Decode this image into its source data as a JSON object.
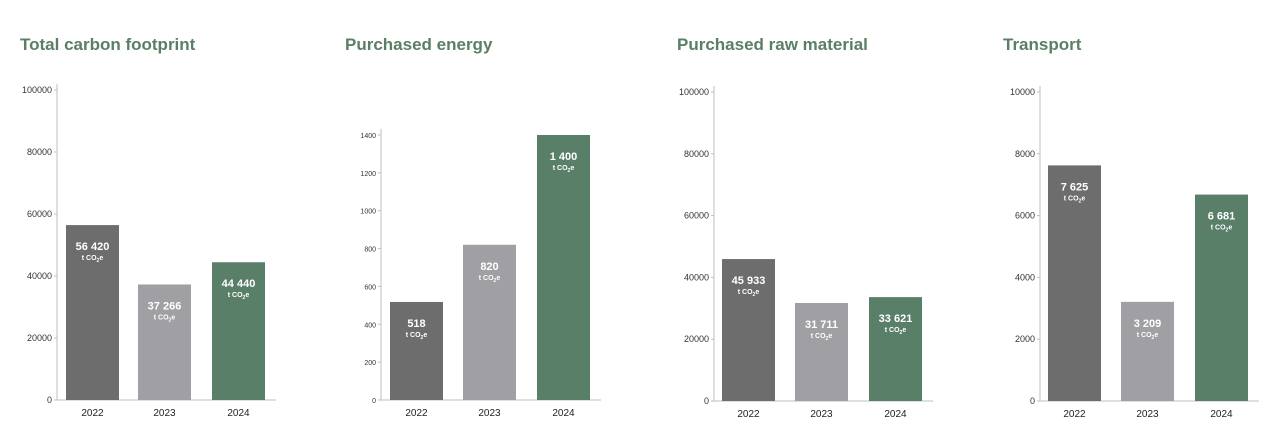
{
  "colors": {
    "year_2022": "#6d6d6d",
    "year_2023": "#a0a0a4",
    "year_2024": "#5a7f69",
    "title": "#5a7f64",
    "axis": "#bfbfbf"
  },
  "chart_data": [
    {
      "type": "bar",
      "title": "Total carbon footprint",
      "categories": [
        "2022",
        "2023",
        "2024"
      ],
      "values": [
        56420,
        37266,
        44440
      ],
      "value_labels": [
        "56 420",
        "37 266",
        "44 440"
      ],
      "unit": "t CO2e",
      "ylim": [
        0,
        100000
      ],
      "yticks": [
        0,
        20000,
        40000,
        60000,
        80000,
        100000
      ],
      "ytick_labels": [
        "0",
        "20000",
        "40000",
        "60000",
        "80000",
        "100000"
      ],
      "xlabel": "",
      "ylabel": "",
      "grid": false
    },
    {
      "type": "bar",
      "title": "Purchased energy",
      "categories": [
        "2022",
        "2023",
        "2024"
      ],
      "values": [
        518,
        820,
        1400
      ],
      "value_labels": [
        "518",
        "820",
        "1 400"
      ],
      "unit": "t CO2e",
      "ylim": [
        0,
        1400
      ],
      "yticks": [
        0,
        200,
        400,
        600,
        800,
        1000,
        1200,
        1400
      ],
      "ytick_labels": [
        "0",
        "200",
        "400",
        "600",
        "800",
        "1000",
        "1200",
        "1400"
      ],
      "xlabel": "",
      "ylabel": "",
      "grid": false
    },
    {
      "type": "bar",
      "title": "Purchased raw material",
      "categories": [
        "2022",
        "2023",
        "2024"
      ],
      "values": [
        45933,
        31711,
        33621
      ],
      "value_labels": [
        "45 933",
        "31 711",
        "33 621"
      ],
      "unit": "t CO2e",
      "ylim": [
        0,
        100000
      ],
      "yticks": [
        0,
        20000,
        40000,
        60000,
        80000,
        100000
      ],
      "ytick_labels": [
        "0",
        "20000",
        "40000",
        "60000",
        "80000",
        "100000"
      ],
      "xlabel": "",
      "ylabel": "",
      "grid": false
    },
    {
      "type": "bar",
      "title": "Transport",
      "categories": [
        "2022",
        "2023",
        "2024"
      ],
      "values": [
        7625,
        3209,
        6681
      ],
      "value_labels": [
        "7 625",
        "3 209",
        "6 681"
      ],
      "unit": "t CO2e",
      "ylim": [
        0,
        10000
      ],
      "yticks": [
        0,
        2000,
        4000,
        6000,
        8000,
        10000
      ],
      "ytick_labels": [
        "0",
        "2000",
        "4000",
        "6000",
        "8000",
        "10000"
      ],
      "xlabel": "",
      "ylabel": "",
      "grid": false
    }
  ]
}
